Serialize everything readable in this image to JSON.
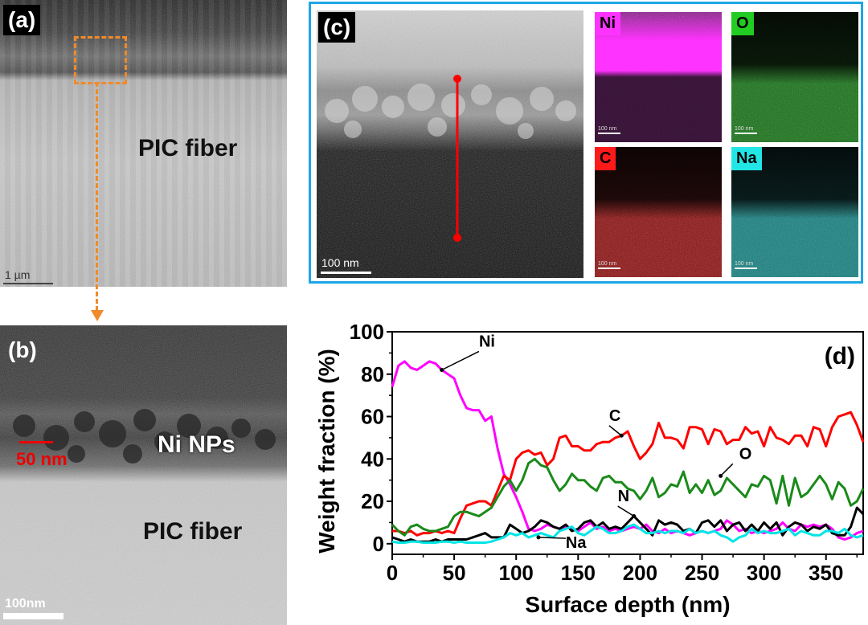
{
  "panel_a": {
    "label": "(a)",
    "text": "PIC fiber",
    "scale": "1 µm",
    "box_color": "#f08a2a"
  },
  "panel_b": {
    "label": "(b)",
    "np_text": "Ni NPs",
    "np_size": "50 nm",
    "text": "PIC fiber",
    "scale": "100nm"
  },
  "panel_c": {
    "label": "(c)",
    "scale": "100 nm",
    "border_color": "#1ea6e6",
    "maps": [
      {
        "element": "Ni",
        "color": "#ff33ff",
        "scale": "100 nm"
      },
      {
        "element": "O",
        "color": "#22cc22",
        "scale": "100 nm"
      },
      {
        "element": "C",
        "color": "#ff1a1a",
        "scale": "100 nm"
      },
      {
        "element": "Na",
        "color": "#22e6e6",
        "scale": "100 nm"
      }
    ]
  },
  "chart_data": {
    "type": "line",
    "panel_label": "(d)",
    "xlabel": "Surface depth (nm)",
    "ylabel": "Weight fraction (%)",
    "xlim": [
      0,
      380
    ],
    "ylim": [
      -5,
      100
    ],
    "xticks": [
      0,
      50,
      100,
      150,
      200,
      250,
      300,
      350
    ],
    "yticks": [
      0,
      20,
      40,
      60,
      80,
      100
    ],
    "grid": false,
    "x": [
      0,
      5,
      10,
      15,
      20,
      25,
      30,
      35,
      40,
      45,
      50,
      55,
      60,
      65,
      70,
      75,
      80,
      85,
      90,
      95,
      100,
      105,
      110,
      115,
      120,
      125,
      130,
      135,
      140,
      145,
      150,
      155,
      160,
      165,
      170,
      175,
      180,
      185,
      190,
      195,
      200,
      205,
      210,
      215,
      220,
      225,
      230,
      235,
      240,
      245,
      250,
      255,
      260,
      265,
      270,
      275,
      280,
      285,
      290,
      295,
      300,
      305,
      310,
      315,
      320,
      325,
      330,
      335,
      340,
      345,
      350,
      355,
      360,
      365,
      370,
      375,
      380
    ],
    "series": [
      {
        "name": "Ni",
        "color": "#ff00ff",
        "values": [
          74,
          84,
          86,
          83,
          82,
          84,
          86,
          85,
          82,
          80,
          78,
          70,
          64,
          63,
          63,
          58,
          60,
          45,
          33,
          28,
          22,
          15,
          7,
          6,
          7,
          9,
          8,
          7,
          8,
          7,
          6,
          8,
          10,
          7,
          8,
          6,
          7,
          6,
          7,
          8,
          7,
          9,
          6,
          5,
          7,
          5,
          6,
          5,
          4,
          5,
          6,
          5,
          6,
          7,
          11,
          9,
          6,
          7,
          5,
          6,
          5,
          6,
          7,
          10,
          7,
          6,
          9,
          8,
          9,
          8,
          9,
          7,
          3,
          2,
          3,
          5,
          6
        ]
      },
      {
        "name": "C",
        "color": "#ff0000",
        "values": [
          6,
          6,
          5,
          6,
          4,
          5,
          5,
          6,
          5,
          6,
          5,
          12,
          18,
          19,
          20,
          20,
          18,
          25,
          32,
          30,
          40,
          43,
          44,
          42,
          43,
          37,
          40,
          50,
          51,
          46,
          46,
          44,
          44,
          47,
          48,
          48,
          50,
          51,
          53,
          46,
          40,
          43,
          47,
          57,
          50,
          50,
          49,
          45,
          55,
          55,
          54,
          47,
          54,
          53,
          47,
          49,
          49,
          55,
          52,
          53,
          46,
          55,
          50,
          49,
          47,
          51,
          51,
          46,
          55,
          54,
          46,
          55,
          60,
          61,
          62,
          56,
          48
        ]
      },
      {
        "name": "O",
        "color": "#1a8a1a",
        "values": [
          9,
          6,
          4,
          8,
          9,
          7,
          6,
          6,
          7,
          8,
          13,
          15,
          15,
          14,
          13,
          15,
          17,
          22,
          27,
          30,
          25,
          30,
          38,
          40,
          37,
          36,
          30,
          25,
          28,
          33,
          30,
          30,
          27,
          25,
          31,
          32,
          29,
          29,
          26,
          25,
          21,
          25,
          31,
          22,
          24,
          28,
          27,
          34,
          24,
          28,
          24,
          30,
          23,
          25,
          31,
          28,
          25,
          22,
          28,
          27,
          32,
          30,
          19,
          32,
          18,
          31,
          22,
          24,
          28,
          32,
          28,
          21,
          29,
          26,
          18,
          20,
          26
        ]
      },
      {
        "name": "N",
        "color": "#000000",
        "values": [
          3,
          2,
          1,
          2,
          1,
          1,
          1,
          2,
          1,
          2,
          2,
          2,
          2,
          3,
          4,
          5,
          3,
          3,
          3,
          9,
          7,
          5,
          6,
          8,
          11,
          10,
          8,
          7,
          9,
          6,
          7,
          10,
          11,
          8,
          10,
          7,
          8,
          7,
          10,
          13,
          10,
          7,
          4,
          11,
          9,
          10,
          9,
          6,
          7,
          5,
          10,
          11,
          8,
          11,
          6,
          9,
          10,
          6,
          9,
          6,
          10,
          7,
          10,
          4,
          8,
          10,
          9,
          6,
          8,
          7,
          9,
          5,
          4,
          4,
          8,
          17,
          14
        ]
      },
      {
        "name": "Na",
        "color": "#00e5e5",
        "values": [
          1,
          0.5,
          0.5,
          1,
          1,
          0.5,
          0.5,
          0.5,
          1,
          1,
          0.5,
          1,
          0.5,
          0.5,
          0.5,
          0.5,
          1,
          2,
          3,
          5,
          4,
          5,
          3,
          4,
          5,
          4,
          3,
          6,
          7,
          8,
          5,
          4,
          6,
          8,
          7,
          5,
          5,
          6,
          8,
          9,
          7,
          5,
          5,
          6,
          5,
          6,
          6,
          5,
          7,
          5,
          6,
          5,
          6,
          4,
          3,
          1,
          3,
          4,
          7,
          5,
          6,
          5,
          5,
          6,
          7,
          4,
          6,
          5,
          4,
          4,
          6,
          6,
          5,
          7,
          4,
          3,
          4
        ]
      }
    ]
  }
}
